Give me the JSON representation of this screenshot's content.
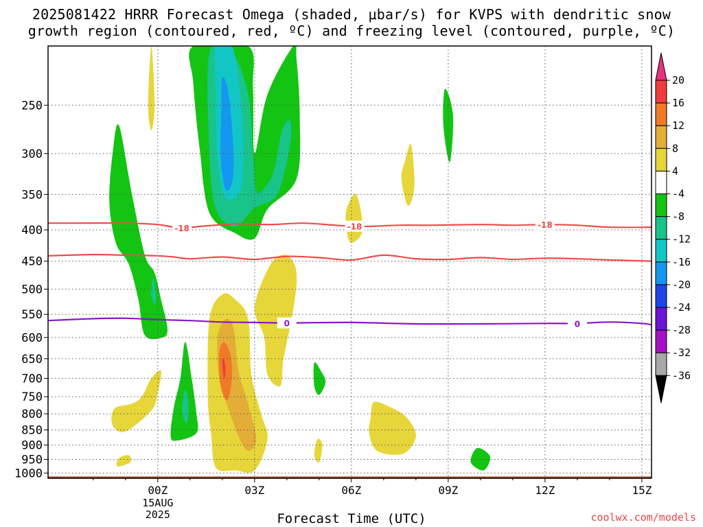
{
  "title_line1": "2025081422 HRRR Forecast Omega (shaded, μbar/s) for KVPS with dendritic snow",
  "title_line2": "growth region (contoured, red, ºC) and freezing level (contoured, purple, ºC)",
  "credit": "coolwx.com/models",
  "chart_data": {
    "type": "contour",
    "xlabel": "Forecast Time (UTC)",
    "ylabel": "",
    "x_range_hours": [
      -3.4,
      15.3
    ],
    "y_range_mb": [
      200,
      1020
    ],
    "y_scale": "log-pressure (inverted)",
    "x_ticks": [
      {
        "hour": 0,
        "label": "00Z",
        "sub": [
          "15AUG",
          "2025"
        ]
      },
      {
        "hour": 3,
        "label": "03Z",
        "sub": []
      },
      {
        "hour": 6,
        "label": "06Z",
        "sub": []
      },
      {
        "hour": 9,
        "label": "09Z",
        "sub": []
      },
      {
        "hour": 12,
        "label": "12Z",
        "sub": []
      },
      {
        "hour": 15,
        "label": "15Z",
        "sub": []
      }
    ],
    "y_ticks": [
      250,
      300,
      350,
      400,
      450,
      500,
      550,
      600,
      650,
      700,
      750,
      800,
      850,
      900,
      950,
      1000
    ],
    "grid": true,
    "colorbar": {
      "labels": [
        "20",
        "16",
        "12",
        "8",
        "4",
        "-4",
        "-8",
        "-12",
        "-16",
        "-20",
        "-24",
        "-28",
        "-32",
        "-36"
      ],
      "colors": [
        "#e8317f",
        "#f23c3c",
        "#f07a26",
        "#e3ad38",
        "#e6d63a",
        "#ffffff",
        "#13c413",
        "#18c48a",
        "#12c6c6",
        "#1497f0",
        "#1d46e6",
        "#6c13d6",
        "#a610c6",
        "#a8a8a8",
        "#000000"
      ]
    },
    "ground_color": "#a0522d",
    "contours": [
      {
        "name": "dendritic_low",
        "color": "#f04a4a",
        "label": "-18",
        "points": [
          [
            -3.4,
            390
          ],
          [
            -2.5,
            390
          ],
          [
            -1,
            390
          ],
          [
            0,
            392
          ],
          [
            0.7,
            397
          ],
          [
            1.5,
            394
          ],
          [
            2.5,
            391
          ],
          [
            3.5,
            392
          ],
          [
            4.5,
            390
          ],
          [
            5.5,
            393
          ],
          [
            6.3,
            395
          ],
          [
            7.5,
            393
          ],
          [
            8.5,
            393
          ],
          [
            10,
            392
          ],
          [
            11,
            393
          ],
          [
            12,
            392
          ],
          [
            13,
            393
          ],
          [
            14,
            396
          ],
          [
            15.3,
            396
          ]
        ],
        "label_hours": [
          0.75,
          6.1,
          12
        ]
      },
      {
        "name": "dendritic_high",
        "color": "#f04a4a",
        "label": "",
        "points": [
          [
            -3.4,
            441
          ],
          [
            -2,
            439
          ],
          [
            -1,
            440
          ],
          [
            0,
            441
          ],
          [
            0.5,
            443
          ],
          [
            1,
            446
          ],
          [
            2,
            443
          ],
          [
            3,
            447
          ],
          [
            4,
            442
          ],
          [
            5,
            444
          ],
          [
            6,
            448
          ],
          [
            7,
            440
          ],
          [
            8,
            446
          ],
          [
            9,
            447
          ],
          [
            10,
            444
          ],
          [
            11,
            447
          ],
          [
            12,
            445
          ],
          [
            13,
            446
          ],
          [
            14,
            448
          ],
          [
            15.3,
            450
          ]
        ],
        "label_hours": []
      },
      {
        "name": "freezing_level",
        "color": "#8a16c8",
        "label": "0",
        "points": [
          [
            -3.4,
            563
          ],
          [
            -2,
            559
          ],
          [
            -1,
            558
          ],
          [
            0,
            561
          ],
          [
            1,
            563
          ],
          [
            2,
            566
          ],
          [
            3,
            567
          ],
          [
            4,
            568
          ],
          [
            6,
            567
          ],
          [
            8,
            570
          ],
          [
            10,
            570
          ],
          [
            12,
            569
          ],
          [
            13,
            569
          ],
          [
            14,
            566
          ],
          [
            15,
            569
          ],
          [
            15.3,
            572
          ]
        ],
        "label_hours": [
          4.0,
          13.0
        ]
      }
    ],
    "shaded_regions": [
      {
        "value": -6,
        "color": "#13c413",
        "points": [
          [
            1.1,
            200
          ],
          [
            2.8,
            200
          ],
          [
            2.95,
            235
          ],
          [
            3.0,
            300
          ],
          [
            3.4,
            240
          ],
          [
            4.2,
            200
          ],
          [
            4.3,
            210
          ],
          [
            4.4,
            260
          ],
          [
            4.3,
            330
          ],
          [
            3.4,
            370
          ],
          [
            3.0,
            413
          ],
          [
            2.4,
            405
          ],
          [
            1.6,
            375
          ],
          [
            1.3,
            295
          ],
          [
            1.1,
            230
          ]
        ]
      },
      {
        "value": -10,
        "color": "#18c48a",
        "points": [
          [
            1.6,
            205
          ],
          [
            2.3,
            205
          ],
          [
            2.8,
            240
          ],
          [
            2.95,
            300
          ],
          [
            3.05,
            345
          ],
          [
            3.3,
            342
          ],
          [
            3.6,
            320
          ],
          [
            3.85,
            275
          ],
          [
            4.1,
            265
          ],
          [
            4.1,
            290
          ],
          [
            3.7,
            350
          ],
          [
            3.0,
            368
          ],
          [
            2.4,
            395
          ],
          [
            1.8,
            370
          ],
          [
            1.6,
            300
          ]
        ]
      },
      {
        "value": -14,
        "color": "#12c6c6",
        "points": [
          [
            1.8,
            200
          ],
          [
            2.3,
            200
          ],
          [
            2.55,
            240
          ],
          [
            2.65,
            300
          ],
          [
            2.55,
            345
          ],
          [
            2.1,
            355
          ],
          [
            1.85,
            305
          ],
          [
            1.8,
            240
          ]
        ]
      },
      {
        "value": -18,
        "color": "#1497f0",
        "points": [
          [
            2.0,
            225
          ],
          [
            2.2,
            240
          ],
          [
            2.35,
            300
          ],
          [
            2.3,
            335
          ],
          [
            2.1,
            343
          ],
          [
            1.95,
            305
          ],
          [
            1.97,
            250
          ]
        ]
      },
      {
        "value": -6,
        "color": "#13c413",
        "points": [
          [
            -1.2,
            270
          ],
          [
            -0.8,
            350
          ],
          [
            -0.4,
            440
          ],
          [
            -0.1,
            470
          ],
          [
            0.1,
            520
          ],
          [
            0.3,
            580
          ],
          [
            0.15,
            600
          ],
          [
            -0.4,
            595
          ],
          [
            -0.6,
            520
          ],
          [
            -0.9,
            455
          ],
          [
            -1.3,
            420
          ],
          [
            -1.5,
            360
          ],
          [
            -1.4,
            300
          ]
        ]
      },
      {
        "value": -10,
        "color": "#18c48a",
        "points": [
          [
            -0.15,
            480
          ],
          [
            -0.05,
            510
          ],
          [
            -0.1,
            530
          ],
          [
            -0.2,
            510
          ]
        ]
      },
      {
        "value": -6,
        "color": "#13c413",
        "points": [
          [
            0.85,
            610
          ],
          [
            1.05,
            700
          ],
          [
            1.2,
            800
          ],
          [
            1.2,
            860
          ],
          [
            0.6,
            885
          ],
          [
            0.4,
            870
          ],
          [
            0.5,
            780
          ],
          [
            0.7,
            700
          ]
        ]
      },
      {
        "value": -10,
        "color": "#18c48a",
        "points": [
          [
            0.85,
            730
          ],
          [
            0.95,
            770
          ],
          [
            0.9,
            830
          ],
          [
            0.75,
            790
          ]
        ]
      },
      {
        "value": -6,
        "color": "#13c413",
        "points": [
          [
            8.9,
            235
          ],
          [
            9.15,
            260
          ],
          [
            9.05,
            310
          ],
          [
            8.85,
            270
          ]
        ]
      },
      {
        "value": -6,
        "color": "#13c413",
        "points": [
          [
            4.85,
            660
          ],
          [
            5.05,
            680
          ],
          [
            5.2,
            710
          ],
          [
            5.0,
            745
          ],
          [
            4.85,
            720
          ]
        ]
      },
      {
        "value": -6,
        "color": "#13c413",
        "points": [
          [
            9.9,
            910
          ],
          [
            10.3,
            940
          ],
          [
            10.1,
            990
          ],
          [
            9.7,
            960
          ]
        ]
      },
      {
        "value": 6,
        "color": "#e6d63a",
        "points": [
          [
            -0.2,
            200
          ],
          [
            -0.1,
            250
          ],
          [
            -0.2,
            275
          ],
          [
            -0.3,
            250
          ]
        ]
      },
      {
        "value": 6,
        "color": "#e6d63a",
        "points": [
          [
            7.65,
            310
          ],
          [
            7.85,
            290
          ],
          [
            7.95,
            340
          ],
          [
            7.75,
            365
          ],
          [
            7.55,
            330
          ]
        ]
      },
      {
        "value": 6,
        "color": "#e6d63a",
        "points": [
          [
            5.85,
            370
          ],
          [
            6.15,
            350
          ],
          [
            6.35,
            400
          ],
          [
            6.0,
            420
          ],
          [
            5.85,
            400
          ]
        ]
      },
      {
        "value": 6,
        "color": "#e6d63a",
        "points": [
          [
            3.0,
            535
          ],
          [
            3.5,
            455
          ],
          [
            4.0,
            440
          ],
          [
            4.3,
            470
          ],
          [
            4.2,
            540
          ],
          [
            3.9,
            650
          ],
          [
            3.8,
            720
          ],
          [
            3.4,
            690
          ],
          [
            3.3,
            600
          ]
        ]
      },
      {
        "value": 6,
        "color": "#e6d63a",
        "points": [
          [
            1.6,
            560
          ],
          [
            2.0,
            510
          ],
          [
            2.4,
            520
          ],
          [
            2.8,
            560
          ],
          [
            2.9,
            690
          ],
          [
            3.2,
            800
          ],
          [
            3.4,
            880
          ],
          [
            3.0,
            990
          ],
          [
            2.4,
            990
          ],
          [
            1.8,
            980
          ],
          [
            1.65,
            860
          ],
          [
            1.55,
            750
          ]
        ]
      },
      {
        "value": 10,
        "color": "#e3ad38",
        "points": [
          [
            1.85,
            600
          ],
          [
            2.1,
            560
          ],
          [
            2.35,
            580
          ],
          [
            2.5,
            680
          ],
          [
            2.8,
            770
          ],
          [
            3.05,
            880
          ],
          [
            2.8,
            920
          ],
          [
            2.5,
            870
          ],
          [
            2.1,
            760
          ],
          [
            1.9,
            700
          ]
        ]
      },
      {
        "value": 14,
        "color": "#f07a26",
        "points": [
          [
            1.9,
            640
          ],
          [
            2.05,
            610
          ],
          [
            2.25,
            640
          ],
          [
            2.3,
            700
          ],
          [
            2.15,
            760
          ],
          [
            1.95,
            720
          ]
        ]
      },
      {
        "value": 18,
        "color": "#f23c3c",
        "points": [
          [
            2.0,
            660
          ],
          [
            2.05,
            650
          ],
          [
            2.1,
            680
          ],
          [
            2.05,
            700
          ]
        ]
      },
      {
        "value": 6,
        "color": "#e6d63a",
        "points": [
          [
            -0.2,
            700
          ],
          [
            0.1,
            680
          ],
          [
            0.0,
            740
          ],
          [
            -0.2,
            790
          ],
          [
            -1.0,
            855
          ],
          [
            -1.4,
            835
          ],
          [
            -1.35,
            785
          ],
          [
            -0.8,
            770
          ],
          [
            -0.5,
            750
          ]
        ]
      },
      {
        "value": 6,
        "color": "#e6d63a",
        "points": [
          [
            -1.2,
            945
          ],
          [
            -0.9,
            935
          ],
          [
            -0.85,
            960
          ],
          [
            -1.25,
            975
          ]
        ]
      },
      {
        "value": 6,
        "color": "#e6d63a",
        "points": [
          [
            6.7,
            765
          ],
          [
            7.2,
            780
          ],
          [
            7.7,
            810
          ],
          [
            8.0,
            870
          ],
          [
            7.6,
            930
          ],
          [
            6.8,
            920
          ],
          [
            6.55,
            860
          ],
          [
            6.6,
            810
          ]
        ]
      },
      {
        "value": 6,
        "color": "#e6d63a",
        "points": [
          [
            4.95,
            880
          ],
          [
            5.1,
            900
          ],
          [
            5.0,
            960
          ],
          [
            4.85,
            935
          ]
        ]
      }
    ]
  }
}
